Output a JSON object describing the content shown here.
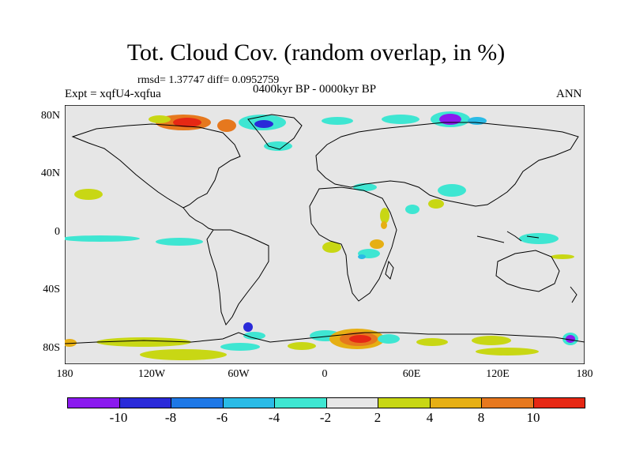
{
  "title": "Tot. Cloud Cov. (random overlap, in %)",
  "stats": "rmsd= 1.37747 diff= 0.0952759",
  "experiment": "Expt = xqfU4-xqfua",
  "period": "0400kyr BP - 0000kyr BP",
  "season": "ANN",
  "y_ticks": [
    "80N",
    "40N",
    "0",
    "40S",
    "80S"
  ],
  "x_ticks": [
    "180",
    "120W",
    "60W",
    "0",
    "60E",
    "120E",
    "180"
  ],
  "colorbar": {
    "labels": [
      "-10",
      "-8",
      "-6",
      "-4",
      "-2",
      "2",
      "4",
      "8",
      "10"
    ],
    "colors": [
      "#8b1aef",
      "#2a2ad9",
      "#1e78e6",
      "#2abbe6",
      "#3ee6d2",
      "#e6e6e6",
      "#c8d714",
      "#e6af14",
      "#e6781e",
      "#e62814"
    ]
  },
  "map_background": "#e6e6e6"
}
